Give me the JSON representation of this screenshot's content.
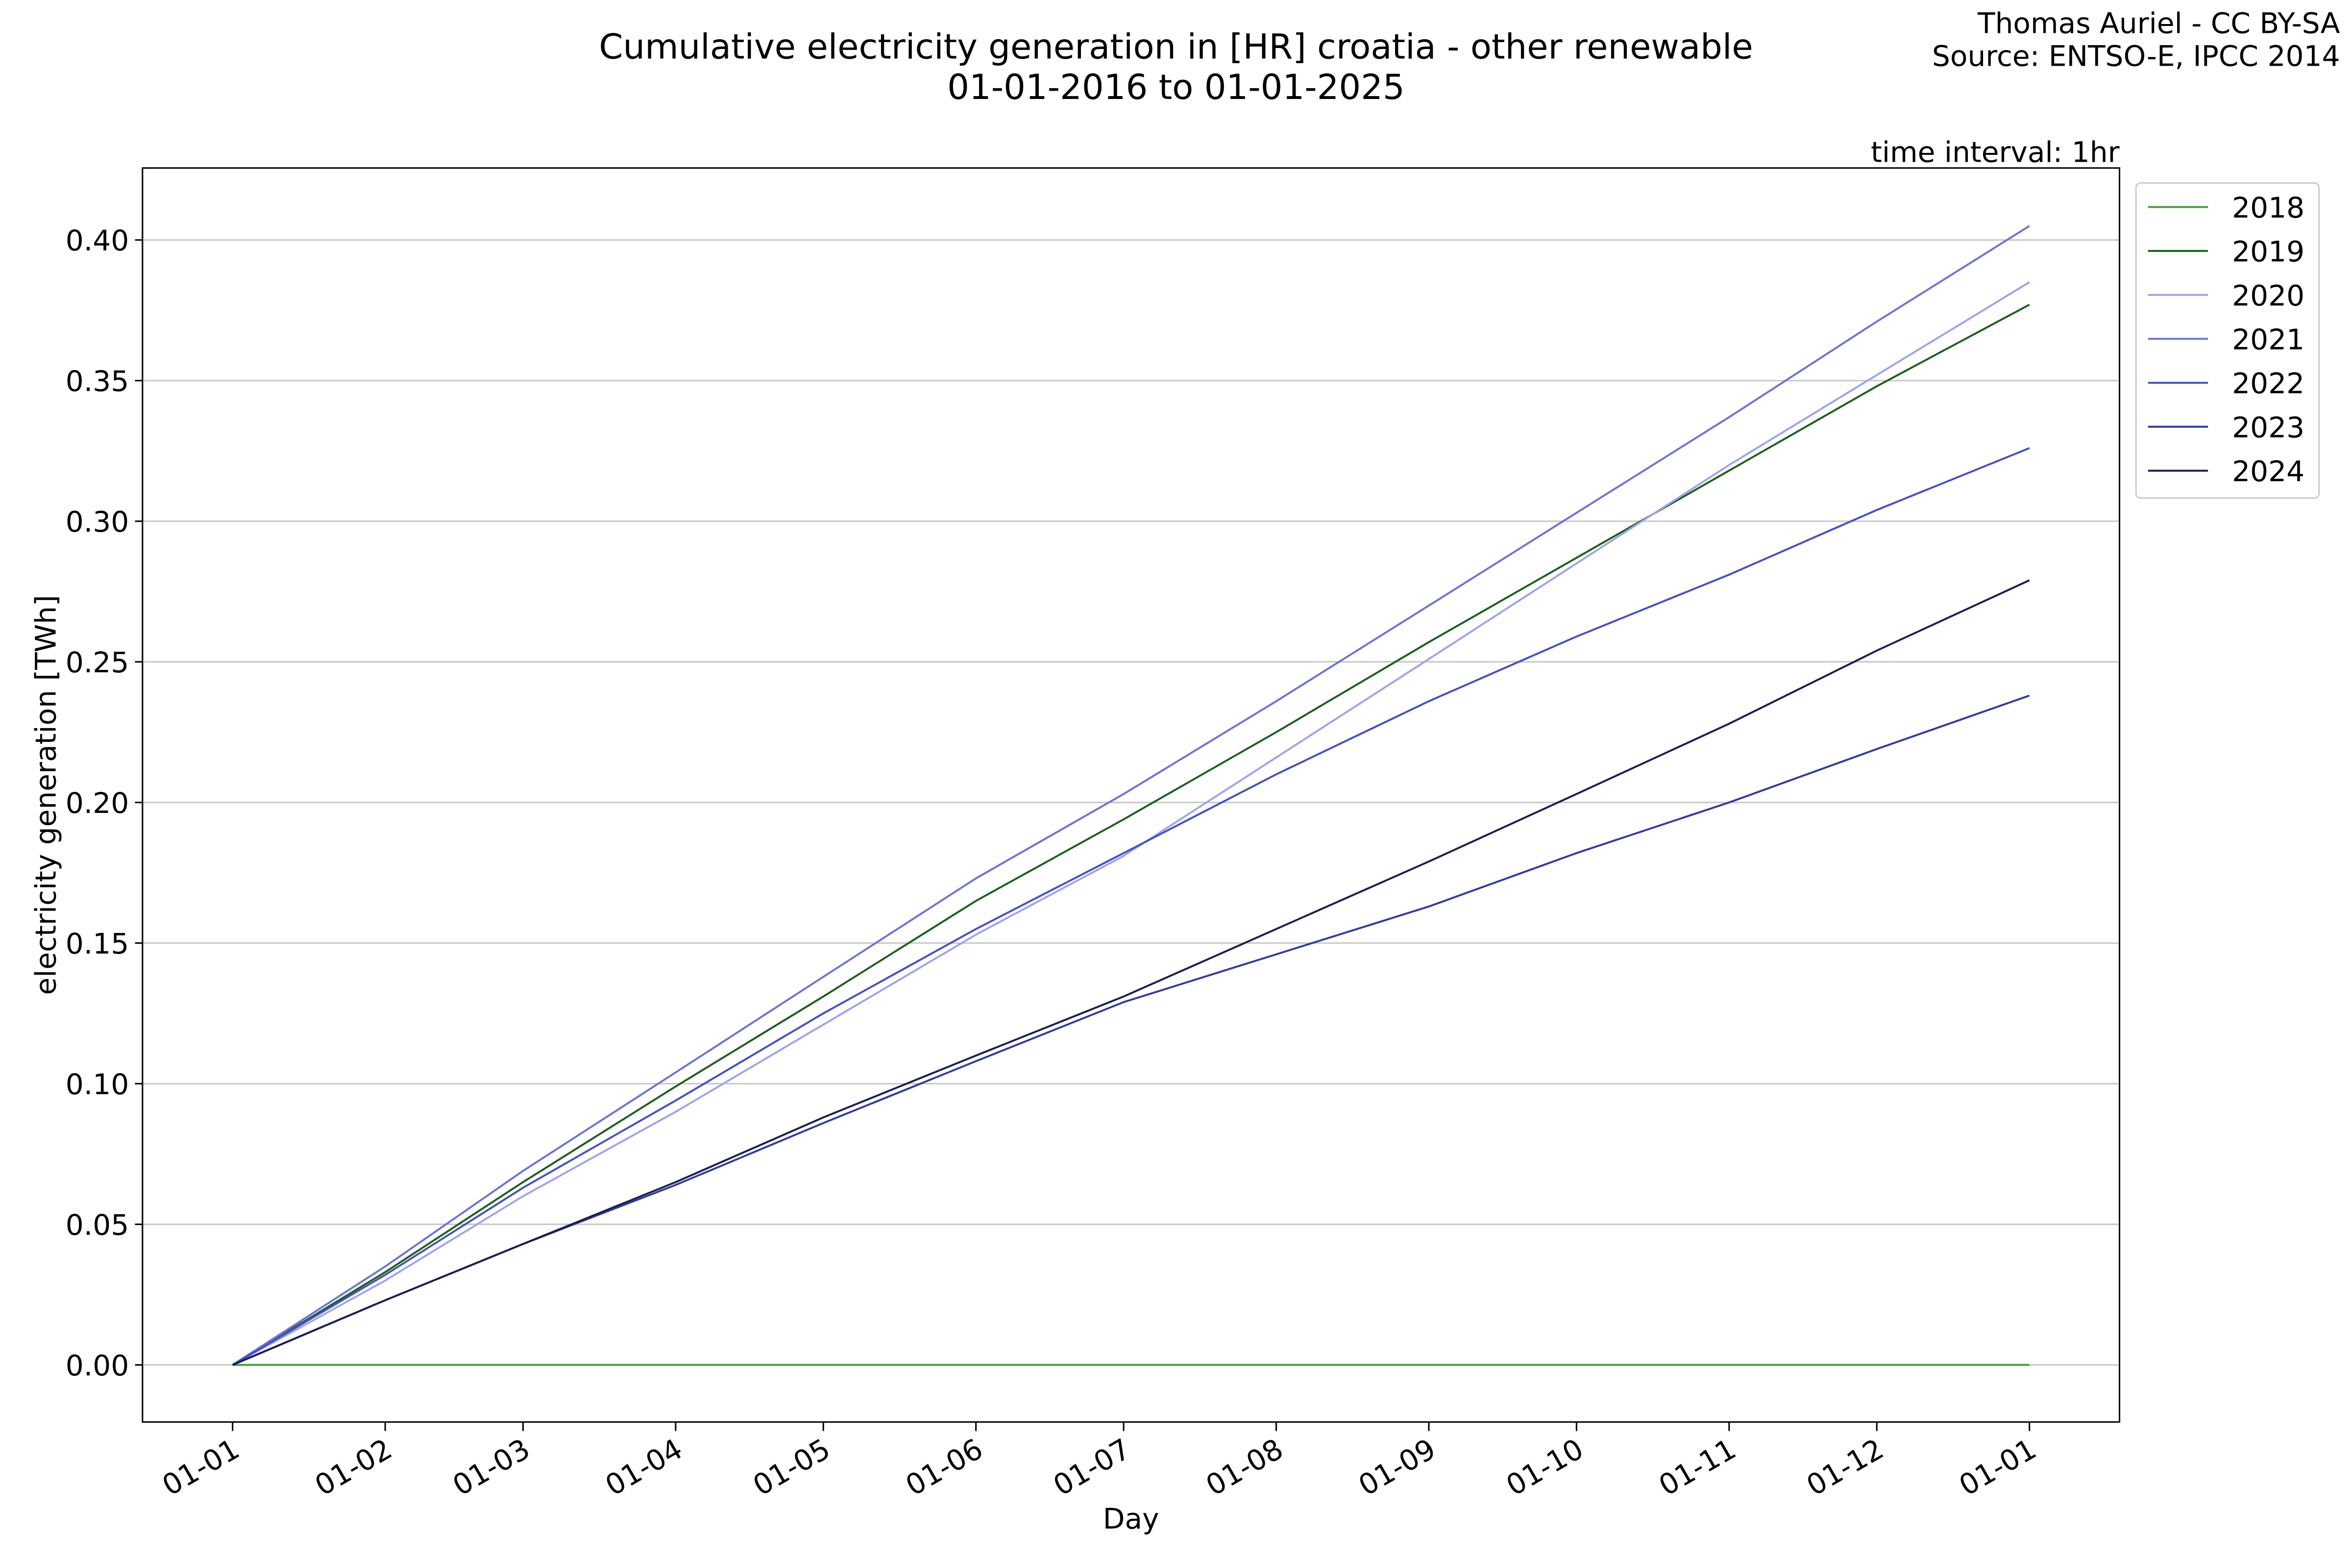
{
  "chart_data": {
    "type": "line",
    "title": "Cumulative electricity generation in [HR] croatia - other renewable",
    "subtitle": "01-01-2016 to 01-01-2025",
    "credit": "Thomas Auriel - CC BY-SA",
    "source": "Source: ENTSO-E, IPCC 2014",
    "annotation": "time interval: 1hr",
    "xlabel": "Day",
    "ylabel": "electricity generation [TWh]",
    "x": [
      0,
      31,
      59,
      90,
      120,
      151,
      181,
      212,
      243,
      273,
      304,
      334,
      365
    ],
    "xlim": [
      -18.3,
      383.3
    ],
    "xticks": [
      {
        "value": 0,
        "label": "01-01"
      },
      {
        "value": 31,
        "label": "01-02"
      },
      {
        "value": 59,
        "label": "01-03"
      },
      {
        "value": 90,
        "label": "01-04"
      },
      {
        "value": 120,
        "label": "01-05"
      },
      {
        "value": 151,
        "label": "01-06"
      },
      {
        "value": 181,
        "label": "01-07"
      },
      {
        "value": 212,
        "label": "01-08"
      },
      {
        "value": 243,
        "label": "01-09"
      },
      {
        "value": 273,
        "label": "01-10"
      },
      {
        "value": 304,
        "label": "01-11"
      },
      {
        "value": 334,
        "label": "01-12"
      },
      {
        "value": 365,
        "label": "01-01"
      }
    ],
    "ylim": [
      -0.0203,
      0.4256
    ],
    "yticks": [
      {
        "value": 0,
        "label": "0.00"
      },
      {
        "value": 0.05,
        "label": "0.05"
      },
      {
        "value": 0.1,
        "label": "0.10"
      },
      {
        "value": 0.15,
        "label": "0.15"
      },
      {
        "value": 0.2,
        "label": "0.20"
      },
      {
        "value": 0.25,
        "label": "0.25"
      },
      {
        "value": 0.3,
        "label": "0.30"
      },
      {
        "value": 0.35,
        "label": "0.35"
      },
      {
        "value": 0.4,
        "label": "0.40"
      }
    ],
    "grid": true,
    "legend": "outside right",
    "series": [
      {
        "name": "2018",
        "color": "#4a9a3a",
        "values": [
          0,
          0,
          0,
          0,
          0,
          0,
          0,
          0,
          0,
          0,
          0,
          0,
          0
        ]
      },
      {
        "name": "2019",
        "color": "#1e5e1e",
        "values": [
          0,
          0.033,
          0.065,
          0.099,
          0.131,
          0.165,
          0.194,
          0.225,
          0.257,
          0.287,
          0.318,
          0.348,
          0.377
        ]
      },
      {
        "name": "2020",
        "color": "#9fa3ee",
        "values": [
          0,
          0.03,
          0.06,
          0.09,
          0.121,
          0.153,
          0.181,
          0.216,
          0.251,
          0.285,
          0.32,
          0.352,
          0.385
        ]
      },
      {
        "name": "2021",
        "color": "#6b73d6",
        "values": [
          0,
          0.035,
          0.069,
          0.104,
          0.138,
          0.173,
          0.203,
          0.236,
          0.27,
          0.303,
          0.337,
          0.371,
          0.405
        ]
      },
      {
        "name": "2022",
        "color": "#4650c0",
        "values": [
          0,
          0.032,
          0.063,
          0.094,
          0.125,
          0.155,
          0.182,
          0.21,
          0.236,
          0.259,
          0.281,
          0.304,
          0.326
        ]
      },
      {
        "name": "2023",
        "color": "#333c9a",
        "values": [
          0,
          0.023,
          0.043,
          0.064,
          0.086,
          0.108,
          0.129,
          0.146,
          0.163,
          0.182,
          0.2,
          0.219,
          0.238
        ]
      },
      {
        "name": "2024",
        "color": "#1b1f4f",
        "values": [
          0,
          0.023,
          0.043,
          0.065,
          0.088,
          0.11,
          0.131,
          0.155,
          0.179,
          0.203,
          0.228,
          0.254,
          0.279
        ]
      }
    ]
  }
}
